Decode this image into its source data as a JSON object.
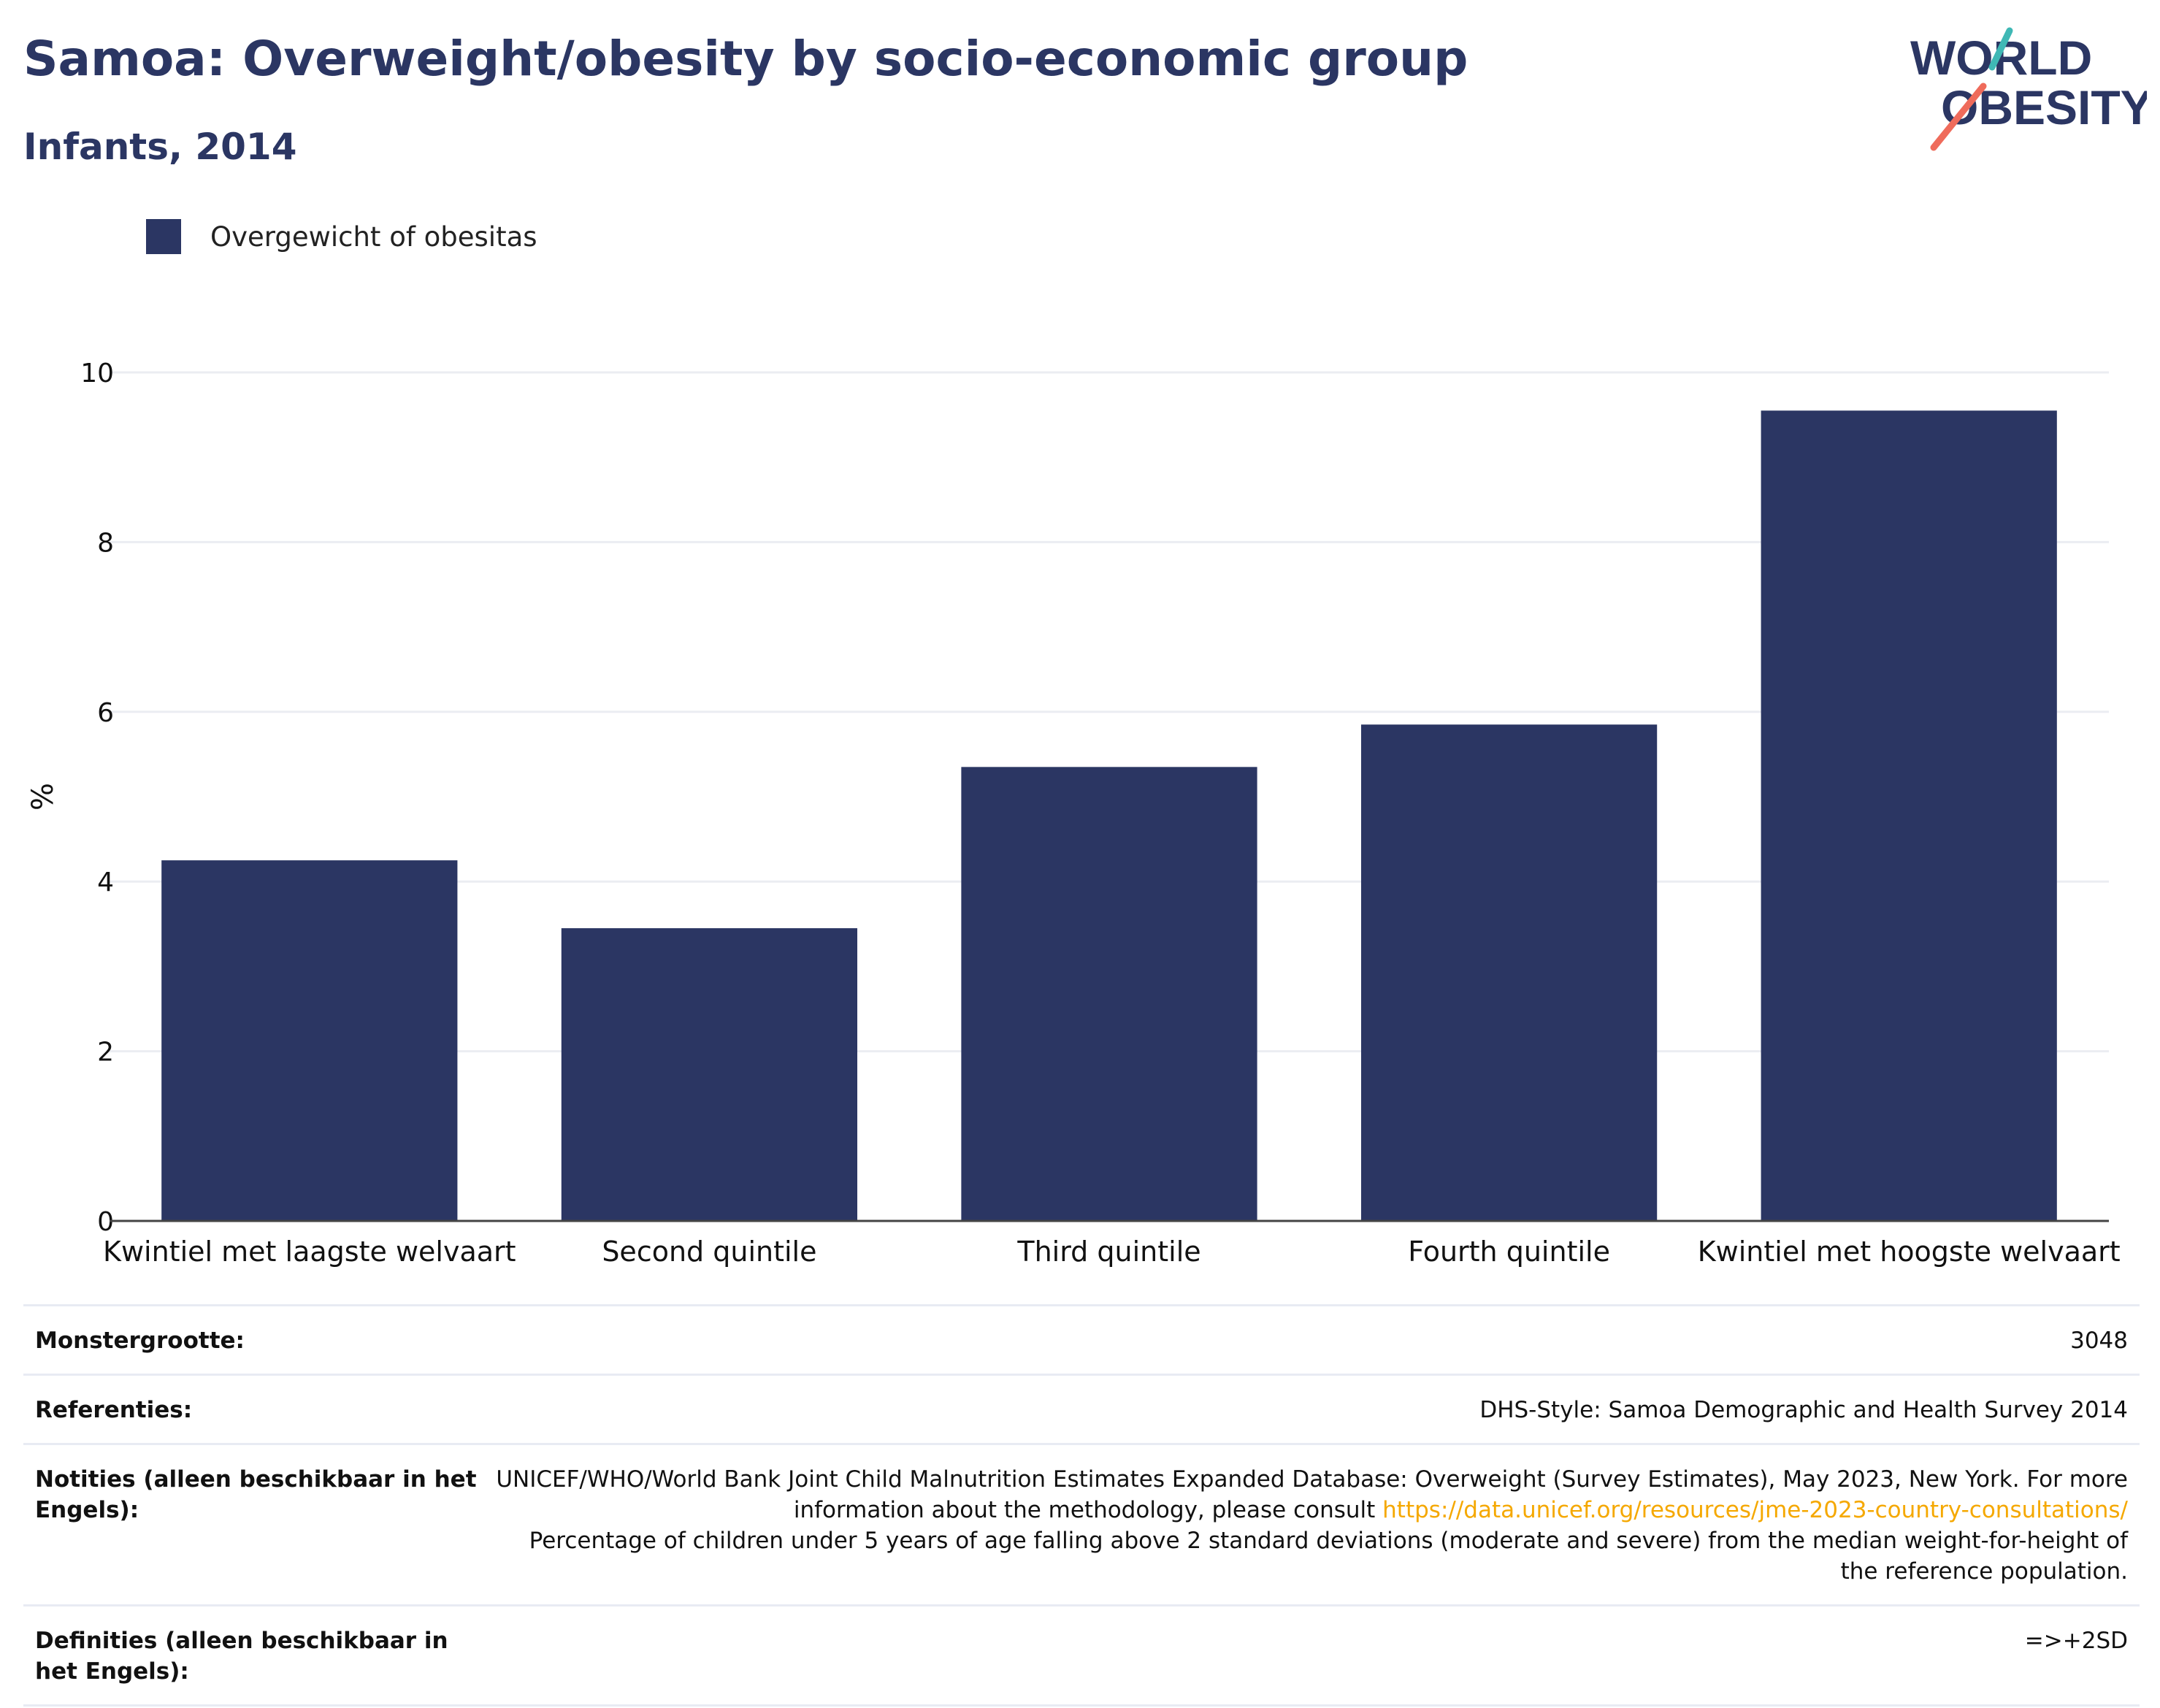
{
  "header": {
    "title": "Samoa: Overweight/obesity by socio-economic group",
    "subtitle": "Infants, 2014"
  },
  "logo": {
    "line1": "WORLD",
    "line2": "OBESITY"
  },
  "colors": {
    "bar": "#2b3663",
    "title": "#2b3663",
    "link": "#f5a800",
    "logo_teal": "#3fb8b5",
    "logo_coral": "#ef6b5b"
  },
  "chart_data": {
    "type": "bar",
    "categories": [
      "Kwintiel met laagste welvaart",
      "Second quintile",
      "Third quintile",
      "Fourth quintile",
      "Kwintiel met hoogste welvaart"
    ],
    "series": [
      {
        "name": "Overgewicht of obesitas",
        "values": [
          4.25,
          3.45,
          5.35,
          5.85,
          9.55
        ]
      }
    ],
    "ylabel": "%",
    "xlabel": "",
    "ylim": [
      0,
      10
    ],
    "yticks": [
      0,
      2,
      4,
      6,
      8,
      10
    ],
    "grid": true,
    "legend_position": "top-left"
  },
  "info": {
    "sample_size_label": "Monstergrootte:",
    "sample_size_value": "3048",
    "references_label": "Referenties:",
    "references_value": "DHS-Style: Samoa Demographic and Health Survey 2014",
    "notes_label": "Notities (alleen beschikbaar in het Engels):",
    "notes_text_1": "UNICEF/WHO/World Bank Joint Child Malnutrition Estimates Expanded Database: Overweight (Survey Estimates), May 2023, New York. For more information about the methodology, please consult ",
    "notes_link": "https://data.unicef.org/resources/jme-2023-country-consultations/",
    "notes_text_2": "Percentage of children under 5 years of age falling above 2 standard deviations (moderate and severe) from the median weight-for-height of the reference population.",
    "definitions_label": "Definities (alleen beschikbaar in het Engels):",
    "definitions_value": "=>+2SD"
  }
}
